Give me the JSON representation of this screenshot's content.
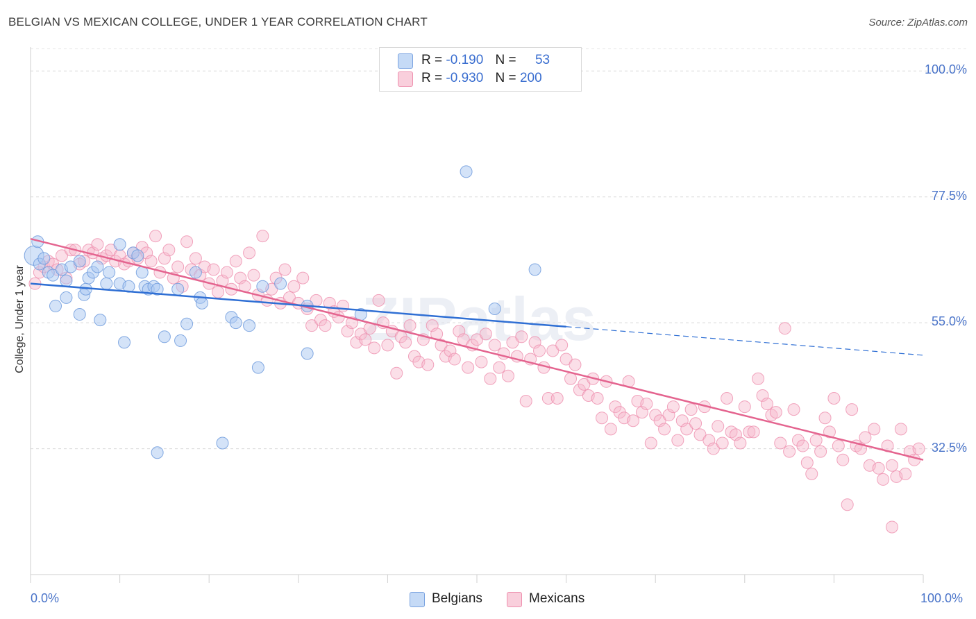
{
  "title": "BELGIAN VS MEXICAN COLLEGE, UNDER 1 YEAR CORRELATION CHART",
  "source": "Source: ZipAtlas.com",
  "watermark": "ZIPatlas",
  "legend": {
    "belgians": {
      "r_label": "R =",
      "r_value": "-0.190",
      "n_label": "N =",
      "n_value": "53"
    },
    "mexicans": {
      "r_label": "R =",
      "r_value": "-0.930",
      "n_label": "N =",
      "n_value": "200"
    }
  },
  "chart_data": {
    "type": "scatter",
    "title": "BELGIAN VS MEXICAN COLLEGE, UNDER 1 YEAR CORRELATION CHART",
    "xlabel": "",
    "ylabel": "College, Under 1 year",
    "xlim": [
      0,
      100
    ],
    "ylim": [
      10,
      104
    ],
    "x_tick_labels": [
      "0.0%",
      "100.0%"
    ],
    "y_ticks": [
      {
        "value": 100.0,
        "label": "100.0%"
      },
      {
        "value": 77.5,
        "label": "77.5%"
      },
      {
        "value": 55.0,
        "label": "55.0%"
      },
      {
        "value": 32.5,
        "label": "32.5%"
      }
    ],
    "colors": {
      "belgians": "#a9c8f2",
      "belgians_line": "#2f6fd4",
      "mexicans": "#f7b7cb",
      "mexicans_line": "#e4648f"
    },
    "series": [
      {
        "name": "Belgians",
        "trend": {
          "x0": 0,
          "y0": 62.0,
          "x1": 60,
          "y1": 54.3,
          "dash_to_x": 100,
          "dash_to_y": 49.2
        },
        "points": [
          [
            0.4,
            67.0
          ],
          [
            0.8,
            69.5
          ],
          [
            1.0,
            65.5
          ],
          [
            1.5,
            66.5
          ],
          [
            2.0,
            64.0
          ],
          [
            2.5,
            63.5
          ],
          [
            2.8,
            58.0
          ],
          [
            3.5,
            64.5
          ],
          [
            4.0,
            62.5
          ],
          [
            4.0,
            59.5
          ],
          [
            4.5,
            65.0
          ],
          [
            5.5,
            66.0
          ],
          [
            5.5,
            56.5
          ],
          [
            6.0,
            60.0
          ],
          [
            6.2,
            61.0
          ],
          [
            6.5,
            63.0
          ],
          [
            7.0,
            64.0
          ],
          [
            7.5,
            65.0
          ],
          [
            7.8,
            55.5
          ],
          [
            8.5,
            62.0
          ],
          [
            8.8,
            64.0
          ],
          [
            10.0,
            69.0
          ],
          [
            10.0,
            62.0
          ],
          [
            10.5,
            51.5
          ],
          [
            11.0,
            61.5
          ],
          [
            11.5,
            67.5
          ],
          [
            12.0,
            67.0
          ],
          [
            12.5,
            64.0
          ],
          [
            12.8,
            61.5
          ],
          [
            13.2,
            61.0
          ],
          [
            13.8,
            61.5
          ],
          [
            14.2,
            61.0
          ],
          [
            14.2,
            31.8
          ],
          [
            15.0,
            52.5
          ],
          [
            16.5,
            61.0
          ],
          [
            16.8,
            51.8
          ],
          [
            17.5,
            54.8
          ],
          [
            18.5,
            64.0
          ],
          [
            19.0,
            59.5
          ],
          [
            19.2,
            58.5
          ],
          [
            21.5,
            33.5
          ],
          [
            22.5,
            56.0
          ],
          [
            23.0,
            55.0
          ],
          [
            24.5,
            54.5
          ],
          [
            25.5,
            47.0
          ],
          [
            26.0,
            61.5
          ],
          [
            28.0,
            62.0
          ],
          [
            31.0,
            49.5
          ],
          [
            31.0,
            58.0
          ],
          [
            37.0,
            56.5
          ],
          [
            48.8,
            82.0
          ],
          [
            52.0,
            57.5
          ],
          [
            56.5,
            64.5
          ]
        ]
      },
      {
        "name": "Mexicans",
        "trend": {
          "x0": 0,
          "y0": 70.0,
          "x1": 100,
          "y1": 30.5
        },
        "points": [
          [
            0.5,
            62.0
          ],
          [
            1.0,
            64.0
          ],
          [
            1.5,
            65.0
          ],
          [
            2.0,
            66.0
          ],
          [
            2.5,
            65.5
          ],
          [
            3.0,
            64.5
          ],
          [
            3.5,
            67.0
          ],
          [
            4.0,
            63.0
          ],
          [
            4.5,
            68.0
          ],
          [
            5.0,
            68.0
          ],
          [
            5.5,
            65.5
          ],
          [
            6.0,
            66.0
          ],
          [
            6.5,
            68.0
          ],
          [
            7.0,
            67.5
          ],
          [
            7.5,
            69.0
          ],
          [
            8.0,
            66.5
          ],
          [
            8.5,
            67.0
          ],
          [
            9.0,
            68.0
          ],
          [
            9.5,
            66.0
          ],
          [
            10.0,
            67.0
          ],
          [
            10.5,
            65.5
          ],
          [
            11.0,
            66.0
          ],
          [
            11.5,
            67.5
          ],
          [
            12.0,
            66.5
          ],
          [
            12.5,
            68.5
          ],
          [
            13.0,
            67.5
          ],
          [
            13.5,
            66.0
          ],
          [
            14.0,
            70.5
          ],
          [
            14.5,
            64.0
          ],
          [
            15.0,
            66.5
          ],
          [
            15.5,
            68.0
          ],
          [
            16.0,
            63.0
          ],
          [
            16.5,
            65.0
          ],
          [
            17.0,
            61.5
          ],
          [
            17.5,
            69.5
          ],
          [
            18.0,
            64.5
          ],
          [
            18.5,
            66.5
          ],
          [
            19.0,
            63.5
          ],
          [
            19.5,
            65.0
          ],
          [
            20.0,
            62.0
          ],
          [
            20.5,
            64.5
          ],
          [
            21.0,
            60.5
          ],
          [
            21.5,
            62.5
          ],
          [
            22.0,
            64.0
          ],
          [
            22.5,
            61.0
          ],
          [
            23.0,
            66.0
          ],
          [
            23.5,
            63.0
          ],
          [
            24.0,
            61.5
          ],
          [
            24.5,
            67.5
          ],
          [
            25.0,
            63.5
          ],
          [
            25.5,
            60.0
          ],
          [
            26.0,
            70.5
          ],
          [
            26.5,
            59.0
          ],
          [
            27.0,
            61.0
          ],
          [
            27.5,
            63.0
          ],
          [
            28.0,
            58.5
          ],
          [
            28.5,
            64.5
          ],
          [
            29.0,
            59.5
          ],
          [
            29.5,
            61.5
          ],
          [
            30.0,
            58.5
          ],
          [
            30.5,
            63.0
          ],
          [
            31.0,
            57.5
          ],
          [
            31.5,
            54.5
          ],
          [
            32.0,
            59.0
          ],
          [
            32.5,
            55.5
          ],
          [
            33.0,
            54.5
          ],
          [
            33.5,
            58.5
          ],
          [
            34.0,
            57.0
          ],
          [
            34.5,
            56.0
          ],
          [
            35.0,
            58.0
          ],
          [
            35.5,
            53.5
          ],
          [
            36.0,
            55.0
          ],
          [
            36.5,
            51.5
          ],
          [
            37.0,
            53.0
          ],
          [
            37.5,
            52.0
          ],
          [
            38.0,
            54.0
          ],
          [
            38.5,
            50.5
          ],
          [
            39.0,
            59.0
          ],
          [
            39.5,
            55.0
          ],
          [
            40.0,
            51.0
          ],
          [
            40.5,
            53.5
          ],
          [
            41.0,
            46.0
          ],
          [
            41.5,
            52.5
          ],
          [
            42.0,
            51.5
          ],
          [
            42.5,
            54.5
          ],
          [
            43.0,
            49.0
          ],
          [
            43.5,
            48.0
          ],
          [
            44.0,
            52.0
          ],
          [
            44.5,
            47.5
          ],
          [
            45.0,
            54.5
          ],
          [
            45.5,
            53.0
          ],
          [
            46.0,
            51.0
          ],
          [
            46.5,
            49.0
          ],
          [
            47.0,
            50.0
          ],
          [
            47.5,
            48.5
          ],
          [
            48.0,
            53.5
          ],
          [
            48.5,
            52.0
          ],
          [
            49.0,
            47.0
          ],
          [
            49.5,
            51.0
          ],
          [
            50.0,
            52.0
          ],
          [
            50.5,
            48.0
          ],
          [
            51.0,
            53.0
          ],
          [
            51.5,
            45.0
          ],
          [
            52.0,
            51.0
          ],
          [
            52.5,
            47.0
          ],
          [
            53.0,
            49.5
          ],
          [
            53.5,
            45.5
          ],
          [
            54.0,
            51.5
          ],
          [
            54.5,
            49.0
          ],
          [
            55.0,
            52.5
          ],
          [
            55.5,
            41.0
          ],
          [
            56.0,
            48.5
          ],
          [
            56.5,
            51.5
          ],
          [
            57.0,
            50.0
          ],
          [
            57.5,
            47.0
          ],
          [
            58.0,
            41.5
          ],
          [
            58.5,
            50.0
          ],
          [
            59.0,
            41.5
          ],
          [
            59.5,
            51.0
          ],
          [
            60.0,
            48.5
          ],
          [
            60.5,
            45.0
          ],
          [
            61.0,
            47.5
          ],
          [
            61.5,
            43.0
          ],
          [
            62.0,
            44.0
          ],
          [
            62.5,
            42.0
          ],
          [
            63.0,
            45.0
          ],
          [
            63.5,
            41.5
          ],
          [
            64.0,
            38.0
          ],
          [
            64.5,
            44.5
          ],
          [
            65.0,
            36.0
          ],
          [
            65.5,
            40.0
          ],
          [
            66.0,
            39.0
          ],
          [
            66.5,
            38.0
          ],
          [
            67.0,
            44.5
          ],
          [
            67.5,
            37.5
          ],
          [
            68.0,
            41.0
          ],
          [
            68.5,
            39.0
          ],
          [
            69.0,
            40.5
          ],
          [
            69.5,
            33.5
          ],
          [
            70.0,
            38.5
          ],
          [
            70.5,
            37.5
          ],
          [
            71.0,
            36.0
          ],
          [
            71.5,
            38.5
          ],
          [
            72.0,
            40.0
          ],
          [
            72.5,
            34.0
          ],
          [
            73.0,
            37.5
          ],
          [
            73.5,
            36.0
          ],
          [
            74.0,
            39.5
          ],
          [
            74.5,
            37.0
          ],
          [
            75.0,
            35.0
          ],
          [
            75.5,
            40.0
          ],
          [
            76.0,
            34.0
          ],
          [
            76.5,
            32.5
          ],
          [
            77.0,
            36.5
          ],
          [
            77.5,
            33.5
          ],
          [
            78.0,
            41.5
          ],
          [
            78.5,
            35.5
          ],
          [
            79.0,
            35.0
          ],
          [
            79.5,
            33.5
          ],
          [
            80.0,
            40.0
          ],
          [
            80.5,
            35.5
          ],
          [
            81.0,
            35.5
          ],
          [
            81.5,
            45.0
          ],
          [
            82.0,
            42.0
          ],
          [
            82.5,
            40.5
          ],
          [
            83.0,
            38.5
          ],
          [
            83.5,
            39.0
          ],
          [
            84.0,
            33.5
          ],
          [
            84.5,
            54.0
          ],
          [
            85.0,
            32.0
          ],
          [
            85.5,
            39.5
          ],
          [
            86.0,
            34.0
          ],
          [
            86.5,
            33.0
          ],
          [
            87.0,
            30.0
          ],
          [
            87.5,
            28.0
          ],
          [
            88.0,
            34.0
          ],
          [
            88.5,
            32.0
          ],
          [
            89.0,
            38.0
          ],
          [
            89.5,
            35.5
          ],
          [
            90.0,
            41.5
          ],
          [
            90.5,
            33.0
          ],
          [
            91.0,
            30.5
          ],
          [
            91.5,
            22.5
          ],
          [
            92.0,
            39.5
          ],
          [
            92.5,
            33.0
          ],
          [
            93.0,
            32.5
          ],
          [
            93.5,
            34.5
          ],
          [
            94.0,
            29.5
          ],
          [
            94.5,
            36.0
          ],
          [
            95.0,
            29.0
          ],
          [
            95.5,
            27.0
          ],
          [
            96.0,
            33.0
          ],
          [
            96.5,
            29.5
          ],
          [
            97.0,
            27.5
          ],
          [
            97.5,
            36.0
          ],
          [
            98.0,
            28.0
          ],
          [
            98.5,
            32.0
          ],
          [
            99.0,
            30.5
          ],
          [
            99.5,
            32.5
          ],
          [
            96.5,
            18.5
          ]
        ]
      }
    ]
  },
  "bottom_legend": {
    "belgians": "Belgians",
    "mexicans": "Mexicans"
  }
}
